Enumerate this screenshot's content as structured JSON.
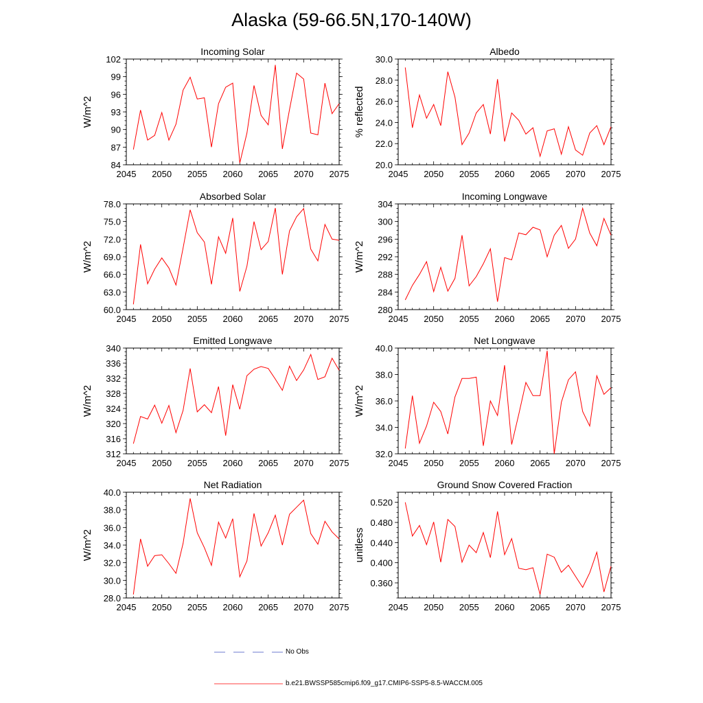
{
  "title": "Alaska (59-66.5N,170-140W)",
  "legend": {
    "obs_label": "No Obs",
    "obs_color": "#3b4fc0",
    "model_label": "b.e21.BWSSP585cmip6.f09_g17.CMIP6-SSP5-8.5-WACCM.005",
    "model_color": "#ff0000"
  },
  "chart_data": [
    {
      "type": "line",
      "title": "Incoming Solar",
      "ylabel": "W/m^2",
      "xlim": [
        2045,
        2075
      ],
      "xticks": [
        2045,
        2050,
        2055,
        2060,
        2065,
        2070,
        2075
      ],
      "ylim": [
        84,
        102
      ],
      "yticks": [
        "84",
        "87",
        "90",
        "93",
        "96",
        "99",
        "102"
      ],
      "x": [
        2046,
        2047,
        2048,
        2049,
        2050,
        2051,
        2052,
        2053,
        2054,
        2055,
        2056,
        2057,
        2058,
        2059,
        2060,
        2061,
        2062,
        2063,
        2064,
        2065,
        2066,
        2067,
        2068,
        2069,
        2070,
        2071,
        2072,
        2073,
        2074,
        2075
      ],
      "values": [
        86.6,
        93.3,
        88.2,
        89.0,
        92.9,
        88.2,
        90.9,
        96.7,
        98.9,
        95.2,
        95.4,
        87.0,
        94.4,
        97.2,
        97.9,
        84.3,
        89.4,
        97.5,
        92.4,
        90.8,
        101.0,
        86.7,
        93.4,
        99.6,
        98.6,
        89.4,
        89.1,
        97.9,
        92.7,
        94.4
      ]
    },
    {
      "type": "line",
      "title": "Albedo",
      "ylabel": "% reflected",
      "xlim": [
        2045,
        2075
      ],
      "xticks": [
        2045,
        2050,
        2055,
        2060,
        2065,
        2070,
        2075
      ],
      "ylim": [
        20,
        30
      ],
      "yticks": [
        "20.0",
        "22.0",
        "24.0",
        "26.0",
        "28.0",
        "30.0"
      ],
      "x": [
        2046,
        2047,
        2048,
        2049,
        2050,
        2051,
        2052,
        2053,
        2054,
        2055,
        2056,
        2057,
        2058,
        2059,
        2060,
        2061,
        2062,
        2063,
        2064,
        2065,
        2066,
        2067,
        2068,
        2069,
        2070,
        2071,
        2072,
        2073,
        2074,
        2075
      ],
      "values": [
        29.2,
        23.5,
        26.6,
        24.4,
        25.7,
        23.7,
        28.8,
        26.4,
        21.9,
        23.0,
        24.9,
        25.7,
        22.9,
        28.1,
        22.2,
        24.9,
        24.2,
        22.9,
        23.5,
        20.8,
        23.2,
        23.4,
        21.0,
        23.6,
        21.4,
        20.9,
        23.0,
        23.7,
        21.9,
        23.6
      ]
    },
    {
      "type": "line",
      "title": "Absorbed Solar",
      "ylabel": "W/m^2",
      "xlim": [
        2045,
        2075
      ],
      "xticks": [
        2045,
        2050,
        2055,
        2060,
        2065,
        2070,
        2075
      ],
      "ylim": [
        60,
        78
      ],
      "yticks": [
        "60.0",
        "63.0",
        "66.0",
        "69.0",
        "72.0",
        "75.0",
        "78.0"
      ],
      "x": [
        2046,
        2047,
        2048,
        2049,
        2050,
        2051,
        2052,
        2053,
        2054,
        2055,
        2056,
        2057,
        2058,
        2059,
        2060,
        2061,
        2062,
        2063,
        2064,
        2065,
        2066,
        2067,
        2068,
        2069,
        2070,
        2071,
        2072,
        2073,
        2074,
        2075
      ],
      "values": [
        60.9,
        71.1,
        64.4,
        66.9,
        68.8,
        67.1,
        64.2,
        70.5,
        77.0,
        73.1,
        71.5,
        64.3,
        72.4,
        69.6,
        75.6,
        63.1,
        67.4,
        75.0,
        70.2,
        71.6,
        77.3,
        66.0,
        73.4,
        75.8,
        77.2,
        70.3,
        68.3,
        74.5,
        72.0,
        71.8
      ]
    },
    {
      "type": "line",
      "title": "Incoming Longwave",
      "ylabel": "W/m^2",
      "xlim": [
        2045,
        2075
      ],
      "xticks": [
        2045,
        2050,
        2055,
        2060,
        2065,
        2070,
        2075
      ],
      "ylim": [
        280,
        304
      ],
      "yticks": [
        "280",
        "284",
        "288",
        "292",
        "296",
        "300",
        "304"
      ],
      "x": [
        2046,
        2047,
        2048,
        2049,
        2050,
        2051,
        2052,
        2053,
        2054,
        2055,
        2056,
        2057,
        2058,
        2059,
        2060,
        2061,
        2062,
        2063,
        2064,
        2065,
        2066,
        2067,
        2068,
        2069,
        2070,
        2071,
        2072,
        2073,
        2074,
        2075
      ],
      "values": [
        282.2,
        285.5,
        288.0,
        290.9,
        284.1,
        289.6,
        284.2,
        287.1,
        296.9,
        285.4,
        287.5,
        290.4,
        293.8,
        281.8,
        291.8,
        291.3,
        297.4,
        297.0,
        298.7,
        298.1,
        292.0,
        296.9,
        299.1,
        293.9,
        296.0,
        303.0,
        297.4,
        294.5,
        300.7,
        296.9
      ]
    },
    {
      "type": "line",
      "title": "Emitted Longwave",
      "ylabel": "W/m^2",
      "xlim": [
        2045,
        2075
      ],
      "xticks": [
        2045,
        2050,
        2055,
        2060,
        2065,
        2070,
        2075
      ],
      "ylim": [
        312,
        340
      ],
      "yticks": [
        "312",
        "316",
        "320",
        "324",
        "328",
        "332",
        "336",
        "340"
      ],
      "x": [
        2046,
        2047,
        2048,
        2049,
        2050,
        2051,
        2052,
        2053,
        2054,
        2055,
        2056,
        2057,
        2058,
        2059,
        2060,
        2061,
        2062,
        2063,
        2064,
        2065,
        2066,
        2067,
        2068,
        2069,
        2070,
        2071,
        2072,
        2073,
        2074,
        2075
      ],
      "values": [
        314.7,
        321.9,
        321.2,
        324.9,
        320.1,
        324.8,
        317.6,
        323.5,
        334.6,
        323.1,
        325.0,
        322.9,
        329.8,
        316.8,
        330.3,
        323.8,
        332.7,
        334.4,
        335.1,
        334.6,
        331.8,
        328.8,
        335.2,
        331.4,
        334.2,
        338.3,
        331.7,
        332.4,
        337.3,
        334.1
      ]
    },
    {
      "type": "line",
      "title": "Net Longwave",
      "ylabel": "W/m^2",
      "xlim": [
        2045,
        2075
      ],
      "xticks": [
        2045,
        2050,
        2055,
        2060,
        2065,
        2070,
        2075
      ],
      "ylim": [
        32,
        40
      ],
      "yticks": [
        "32.0",
        "34.0",
        "36.0",
        "38.0",
        "40.0"
      ],
      "x": [
        2046,
        2047,
        2048,
        2049,
        2050,
        2051,
        2052,
        2053,
        2054,
        2055,
        2056,
        2057,
        2058,
        2059,
        2060,
        2061,
        2062,
        2063,
        2064,
        2065,
        2066,
        2067,
        2068,
        2069,
        2070,
        2071,
        2072,
        2073,
        2074,
        2075
      ],
      "values": [
        32.4,
        36.4,
        32.8,
        34.1,
        35.9,
        35.2,
        33.5,
        36.3,
        37.7,
        37.7,
        37.8,
        32.6,
        36.0,
        34.9,
        38.7,
        32.7,
        35.0,
        37.4,
        36.4,
        36.4,
        39.8,
        32.0,
        35.9,
        37.6,
        38.2,
        35.2,
        34.1,
        37.9,
        36.5,
        37.0
      ]
    },
    {
      "type": "line",
      "title": "Net Radiation",
      "ylabel": "W/m^2",
      "xlim": [
        2045,
        2075
      ],
      "xticks": [
        2045,
        2050,
        2055,
        2060,
        2065,
        2070,
        2075
      ],
      "ylim": [
        28,
        40
      ],
      "yticks": [
        "28.0",
        "30.0",
        "32.0",
        "34.0",
        "36.0",
        "38.0",
        "40.0"
      ],
      "x": [
        2046,
        2047,
        2048,
        2049,
        2050,
        2051,
        2052,
        2053,
        2054,
        2055,
        2056,
        2057,
        2058,
        2059,
        2060,
        2061,
        2062,
        2063,
        2064,
        2065,
        2066,
        2067,
        2068,
        2069,
        2070,
        2071,
        2072,
        2073,
        2074,
        2075
      ],
      "values": [
        28.4,
        34.7,
        31.6,
        32.8,
        32.9,
        31.9,
        30.8,
        34.2,
        39.3,
        35.4,
        33.7,
        31.7,
        36.6,
        34.8,
        37.0,
        30.4,
        32.2,
        37.6,
        33.9,
        35.4,
        37.4,
        34.0,
        37.5,
        38.3,
        39.1,
        35.3,
        34.1,
        36.7,
        35.5,
        34.7
      ]
    },
    {
      "type": "line",
      "title": "Ground Snow Covered Fraction",
      "ylabel": "unitless",
      "xlim": [
        2045,
        2075
      ],
      "xticks": [
        2045,
        2050,
        2055,
        2060,
        2065,
        2070,
        2075
      ],
      "ylim": [
        0.33,
        0.54
      ],
      "yticks": [
        "0.360",
        "0.400",
        "0.440",
        "0.480",
        "0.520"
      ],
      "ytick_values": [
        0.36,
        0.4,
        0.44,
        0.48,
        0.52
      ],
      "x": [
        2046,
        2047,
        2048,
        2049,
        2050,
        2051,
        2052,
        2053,
        2054,
        2055,
        2056,
        2057,
        2058,
        2059,
        2060,
        2061,
        2062,
        2063,
        2064,
        2065,
        2066,
        2067,
        2068,
        2069,
        2070,
        2071,
        2072,
        2073,
        2074,
        2075
      ],
      "values": [
        0.52,
        0.453,
        0.474,
        0.436,
        0.481,
        0.401,
        0.486,
        0.472,
        0.401,
        0.435,
        0.42,
        0.46,
        0.41,
        0.502,
        0.416,
        0.448,
        0.389,
        0.386,
        0.39,
        0.337,
        0.417,
        0.411,
        0.381,
        0.395,
        0.373,
        0.351,
        0.38,
        0.421,
        0.342,
        0.393
      ]
    }
  ]
}
